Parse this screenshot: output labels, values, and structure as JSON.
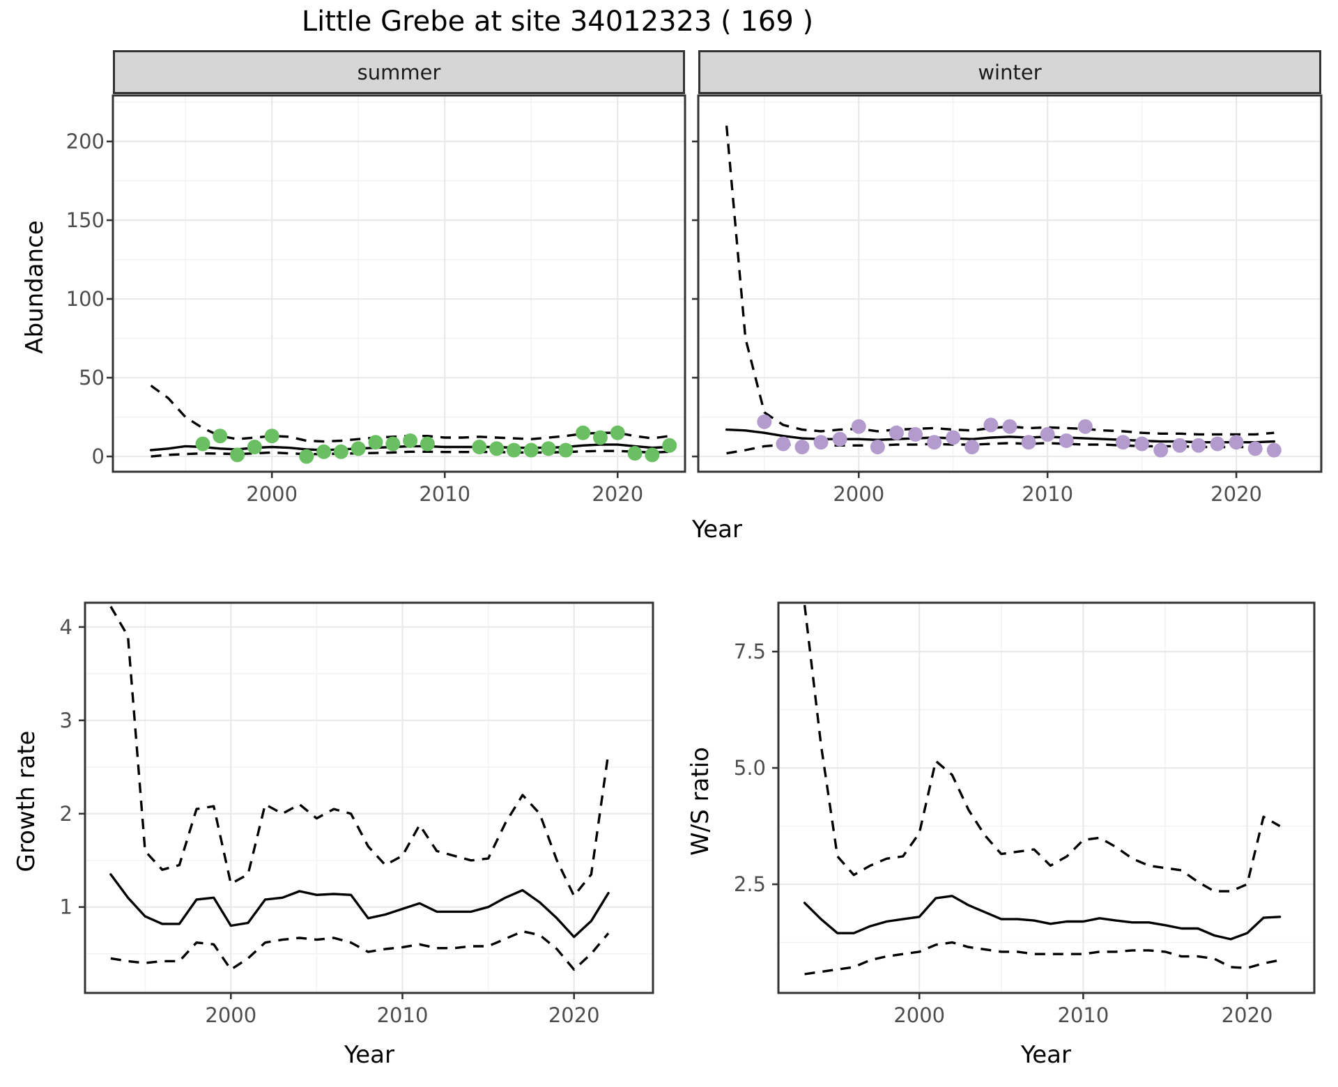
{
  "title": "Little Grebe at site 34012323 ( 169 )",
  "chart_data": [
    {
      "id": "abundance-summer",
      "type": "scatter",
      "facet_label": "summer",
      "xlabel": "Year",
      "ylabel": "Abundance",
      "xlim": [
        1990.8,
        2023.9
      ],
      "ylim": [
        -9.7,
        229.2
      ],
      "xticks": [
        2000,
        2010,
        2020
      ],
      "yticks": [
        0,
        50,
        100,
        150,
        200
      ],
      "ytick_labels": [
        "0",
        "50",
        "100",
        "150",
        "200"
      ],
      "grid": "on",
      "point_color": "#6abf63",
      "points": {
        "x": [
          1996,
          1997,
          1998,
          1999,
          2000,
          2002,
          2003,
          2004,
          2005,
          2006,
          2007,
          2008,
          2009,
          2012,
          2013,
          2014,
          2015,
          2016,
          2017,
          2018,
          2019,
          2020,
          2021,
          2022,
          2023
        ],
        "y": [
          8,
          13,
          1,
          6,
          13,
          0,
          3,
          3,
          5,
          9,
          8,
          10,
          8,
          6,
          5,
          4,
          4,
          5,
          4,
          15,
          12,
          15,
          2,
          1,
          7
        ]
      },
      "series": [
        {
          "name": "fit",
          "style": "solid",
          "x": [
            1993,
            1994,
            1995,
            1996,
            1997,
            1998,
            1999,
            2000,
            2001,
            2002,
            2003,
            2004,
            2005,
            2006,
            2007,
            2008,
            2009,
            2010,
            2011,
            2012,
            2013,
            2014,
            2015,
            2016,
            2017,
            2018,
            2019,
            2020,
            2021,
            2022,
            2023
          ],
          "y": [
            4,
            5,
            6.5,
            6,
            5,
            4.5,
            5.5,
            6,
            5.5,
            4.5,
            4,
            4.5,
            5,
            5.5,
            6,
            6.5,
            6.5,
            6,
            6,
            6,
            6,
            5.5,
            5.5,
            5.5,
            6,
            7,
            7.5,
            7.5,
            6.5,
            5.5,
            6
          ]
        },
        {
          "name": "upper_ci",
          "style": "dashed",
          "x": [
            1993,
            1994,
            1995,
            1996,
            1997,
            1998,
            1999,
            2000,
            2001,
            2002,
            2003,
            2004,
            2005,
            2006,
            2007,
            2008,
            2009,
            2010,
            2011,
            2012,
            2013,
            2014,
            2015,
            2016,
            2017,
            2018,
            2019,
            2020,
            2021,
            2022,
            2023
          ],
          "y": [
            45,
            37,
            25,
            18,
            13,
            11,
            12,
            13,
            12.5,
            10,
            9.5,
            10,
            11,
            12,
            12.5,
            13,
            13,
            12,
            12,
            12.5,
            12,
            11.5,
            11,
            12,
            13,
            14.5,
            15,
            15,
            13,
            11.5,
            13
          ]
        },
        {
          "name": "lower_ci",
          "style": "dashed",
          "x": [
            1993,
            1994,
            1995,
            1996,
            1997,
            1998,
            1999,
            2000,
            2001,
            2002,
            2003,
            2004,
            2005,
            2006,
            2007,
            2008,
            2009,
            2010,
            2011,
            2012,
            2013,
            2014,
            2015,
            2016,
            2017,
            2018,
            2019,
            2020,
            2021,
            2022,
            2023
          ],
          "y": [
            0,
            1,
            1.5,
            2,
            1.8,
            1.5,
            2,
            2.5,
            2,
            1.5,
            1.5,
            1.8,
            2,
            2.2,
            2.5,
            3,
            3,
            2.8,
            2.8,
            2.8,
            2.8,
            2.5,
            2.5,
            2.5,
            2.8,
            3.2,
            3.5,
            3.5,
            3,
            2.5,
            3
          ]
        }
      ]
    },
    {
      "id": "abundance-winter",
      "type": "scatter",
      "facet_label": "winter",
      "xlabel": "Year",
      "ylabel": "Abundance",
      "xlim": [
        1991.5,
        2024.5
      ],
      "ylim": [
        -9.7,
        229.2
      ],
      "xticks": [
        2000,
        2010,
        2020
      ],
      "yticks": [
        0,
        50,
        100,
        150,
        200
      ],
      "ytick_labels": [
        "0",
        "50",
        "100",
        "150",
        "200"
      ],
      "grid": "on",
      "point_color": "#b39bce",
      "points": {
        "x": [
          1995,
          1996,
          1997,
          1998,
          1999,
          2000,
          2001,
          2002,
          2003,
          2004,
          2005,
          2006,
          2007,
          2008,
          2009,
          2010,
          2011,
          2012,
          2014,
          2015,
          2016,
          2017,
          2018,
          2019,
          2020,
          2021,
          2022
        ],
        "y": [
          22,
          8,
          6,
          9,
          11,
          19,
          6,
          15,
          14,
          9,
          12,
          6,
          20,
          19,
          9,
          14,
          10,
          19,
          9,
          8,
          4,
          7,
          7,
          8,
          9,
          5,
          4
        ]
      },
      "series": [
        {
          "name": "fit",
          "style": "solid",
          "x": [
            1993,
            1994,
            1995,
            1996,
            1997,
            1998,
            1999,
            2000,
            2001,
            2002,
            2003,
            2004,
            2005,
            2006,
            2007,
            2008,
            2009,
            2010,
            2011,
            2012,
            2013,
            2014,
            2015,
            2016,
            2017,
            2018,
            2019,
            2020,
            2021,
            2022
          ],
          "y": [
            17,
            16.5,
            15,
            13,
            11.5,
            11,
            11,
            11,
            10.5,
            11,
            11.5,
            12,
            11.5,
            11,
            12,
            12.5,
            12,
            12.5,
            12,
            11.5,
            11,
            10.5,
            10,
            9.5,
            9.5,
            9,
            9,
            9,
            9,
            9.5
          ]
        },
        {
          "name": "upper_ci",
          "style": "dashed",
          "x": [
            1993,
            1994,
            1995,
            1996,
            1997,
            1998,
            1999,
            2000,
            2001,
            2002,
            2003,
            2004,
            2005,
            2006,
            2007,
            2008,
            2009,
            2010,
            2011,
            2012,
            2013,
            2014,
            2015,
            2016,
            2017,
            2018,
            2019,
            2020,
            2021,
            2022
          ],
          "y": [
            210,
            75,
            28,
            20,
            17,
            16,
            17,
            17.5,
            16,
            17,
            17.5,
            18,
            17,
            16.5,
            18,
            19,
            18,
            18.5,
            18,
            17.5,
            16.5,
            16,
            15,
            14.5,
            14.5,
            14,
            14,
            14,
            14,
            15
          ]
        },
        {
          "name": "lower_ci",
          "style": "dashed",
          "x": [
            1993,
            1994,
            1995,
            1996,
            1997,
            1998,
            1999,
            2000,
            2001,
            2002,
            2003,
            2004,
            2005,
            2006,
            2007,
            2008,
            2009,
            2010,
            2011,
            2012,
            2013,
            2014,
            2015,
            2016,
            2017,
            2018,
            2019,
            2020,
            2021,
            2022
          ],
          "y": [
            2,
            4,
            6.5,
            7.5,
            7.5,
            7,
            7,
            7,
            7,
            7.5,
            7.5,
            8,
            7.5,
            7.5,
            8,
            8.5,
            8,
            8.5,
            8,
            7.5,
            7.5,
            7,
            6.5,
            6.5,
            6.5,
            6,
            6,
            6,
            6,
            6.5
          ]
        }
      ]
    },
    {
      "id": "growth-rate",
      "type": "line",
      "facet_label": "",
      "xlabel": "Year",
      "ylabel": "Growth rate",
      "xlim": [
        1991.5,
        2024.6
      ],
      "ylim": [
        0.08,
        4.26
      ],
      "xticks": [
        2000,
        2010,
        2020
      ],
      "yticks": [
        1,
        2,
        3,
        4
      ],
      "ytick_labels": [
        "1",
        "2",
        "3",
        "4"
      ],
      "grid": "on",
      "point_color": "#000000",
      "points": {
        "x": [],
        "y": []
      },
      "series": [
        {
          "name": "fit",
          "style": "solid",
          "x": [
            1993,
            1994,
            1995,
            1996,
            1997,
            1998,
            1999,
            2000,
            2001,
            2002,
            2003,
            2004,
            2005,
            2006,
            2007,
            2008,
            2009,
            2010,
            2011,
            2012,
            2013,
            2014,
            2015,
            2016,
            2017,
            2018,
            2019,
            2020,
            2021,
            2022
          ],
          "y": [
            1.35,
            1.1,
            0.9,
            0.82,
            0.82,
            1.08,
            1.1,
            0.8,
            0.83,
            1.08,
            1.1,
            1.17,
            1.13,
            1.14,
            1.13,
            0.88,
            0.92,
            0.98,
            1.04,
            0.95,
            0.95,
            0.95,
            1.0,
            1.1,
            1.18,
            1.05,
            0.88,
            0.68,
            0.85,
            1.15
          ]
        },
        {
          "name": "upper_ci",
          "style": "dashed",
          "x": [
            1993,
            1994,
            1995,
            1996,
            1997,
            1998,
            1999,
            2000,
            2001,
            2002,
            2003,
            2004,
            2005,
            2006,
            2007,
            2008,
            2009,
            2010,
            2011,
            2012,
            2013,
            2014,
            2015,
            2016,
            2017,
            2018,
            2019,
            2020,
            2021,
            2022
          ],
          "y": [
            4.22,
            3.9,
            1.6,
            1.4,
            1.45,
            2.05,
            2.08,
            1.25,
            1.35,
            2.1,
            2.0,
            2.1,
            1.95,
            2.05,
            2.0,
            1.65,
            1.45,
            1.55,
            1.88,
            1.6,
            1.55,
            1.5,
            1.52,
            1.9,
            2.2,
            2.0,
            1.5,
            1.12,
            1.35,
            2.65
          ]
        },
        {
          "name": "lower_ci",
          "style": "dashed",
          "x": [
            1993,
            1994,
            1995,
            1996,
            1997,
            1998,
            1999,
            2000,
            2001,
            2002,
            2003,
            2004,
            2005,
            2006,
            2007,
            2008,
            2009,
            2010,
            2011,
            2012,
            2013,
            2014,
            2015,
            2016,
            2017,
            2018,
            2019,
            2020,
            2021,
            2022
          ],
          "y": [
            0.45,
            0.42,
            0.4,
            0.42,
            0.42,
            0.62,
            0.6,
            0.33,
            0.45,
            0.62,
            0.65,
            0.67,
            0.65,
            0.67,
            0.62,
            0.52,
            0.55,
            0.57,
            0.6,
            0.56,
            0.56,
            0.58,
            0.58,
            0.66,
            0.74,
            0.7,
            0.55,
            0.33,
            0.5,
            0.72
          ]
        }
      ]
    },
    {
      "id": "ws-ratio",
      "type": "line",
      "facet_label": "",
      "xlabel": "Year",
      "ylabel": "W/S ratio",
      "xlim": [
        1991.4,
        2024.1
      ],
      "ylim": [
        0.165,
        8.55
      ],
      "xticks": [
        2000,
        2010,
        2020
      ],
      "yticks": [
        2.5,
        5.0,
        7.5
      ],
      "ytick_labels": [
        "2.5",
        "5.0",
        "7.5"
      ],
      "grid": "on",
      "point_color": "#000000",
      "points": {
        "x": [],
        "y": []
      },
      "series": [
        {
          "name": "fit",
          "style": "solid",
          "x": [
            1993,
            1994,
            1995,
            1996,
            1997,
            1998,
            1999,
            2000,
            2001,
            2002,
            2003,
            2004,
            2005,
            2006,
            2007,
            2008,
            2009,
            2010,
            2011,
            2012,
            2013,
            2014,
            2015,
            2016,
            2017,
            2018,
            2019,
            2020,
            2021,
            2022
          ],
          "y": [
            2.1,
            1.75,
            1.45,
            1.45,
            1.6,
            1.7,
            1.75,
            1.8,
            2.2,
            2.25,
            2.05,
            1.9,
            1.75,
            1.75,
            1.72,
            1.65,
            1.7,
            1.7,
            1.77,
            1.72,
            1.68,
            1.68,
            1.62,
            1.55,
            1.55,
            1.4,
            1.32,
            1.45,
            1.78,
            1.8
          ]
        },
        {
          "name": "upper_ci",
          "style": "dashed",
          "x": [
            1993,
            1994,
            1995,
            1996,
            1997,
            1998,
            1999,
            2000,
            2001,
            2002,
            2003,
            2004,
            2005,
            2006,
            2007,
            2008,
            2009,
            2010,
            2011,
            2012,
            2013,
            2014,
            2015,
            2016,
            2017,
            2018,
            2019,
            2020,
            2021,
            2022
          ],
          "y": [
            8.5,
            5.5,
            3.1,
            2.7,
            2.9,
            3.05,
            3.1,
            3.6,
            5.15,
            4.85,
            4.1,
            3.55,
            3.15,
            3.2,
            3.25,
            2.9,
            3.1,
            3.45,
            3.5,
            3.3,
            3.05,
            2.9,
            2.85,
            2.8,
            2.55,
            2.35,
            2.35,
            2.5,
            3.95,
            3.75
          ]
        },
        {
          "name": "lower_ci",
          "style": "dashed",
          "x": [
            1993,
            1994,
            1995,
            1996,
            1997,
            1998,
            1999,
            2000,
            2001,
            2002,
            2003,
            2004,
            2005,
            2006,
            2007,
            2008,
            2009,
            2010,
            2011,
            2012,
            2013,
            2014,
            2015,
            2016,
            2017,
            2018,
            2019,
            2020,
            2021,
            2022
          ],
          "y": [
            0.57,
            0.62,
            0.67,
            0.72,
            0.87,
            0.95,
            1.0,
            1.05,
            1.2,
            1.25,
            1.15,
            1.1,
            1.05,
            1.05,
            1.0,
            1.0,
            1.0,
            1.0,
            1.05,
            1.05,
            1.08,
            1.08,
            1.05,
            0.95,
            0.95,
            0.9,
            0.72,
            0.7,
            0.8,
            0.87
          ]
        }
      ]
    }
  ]
}
